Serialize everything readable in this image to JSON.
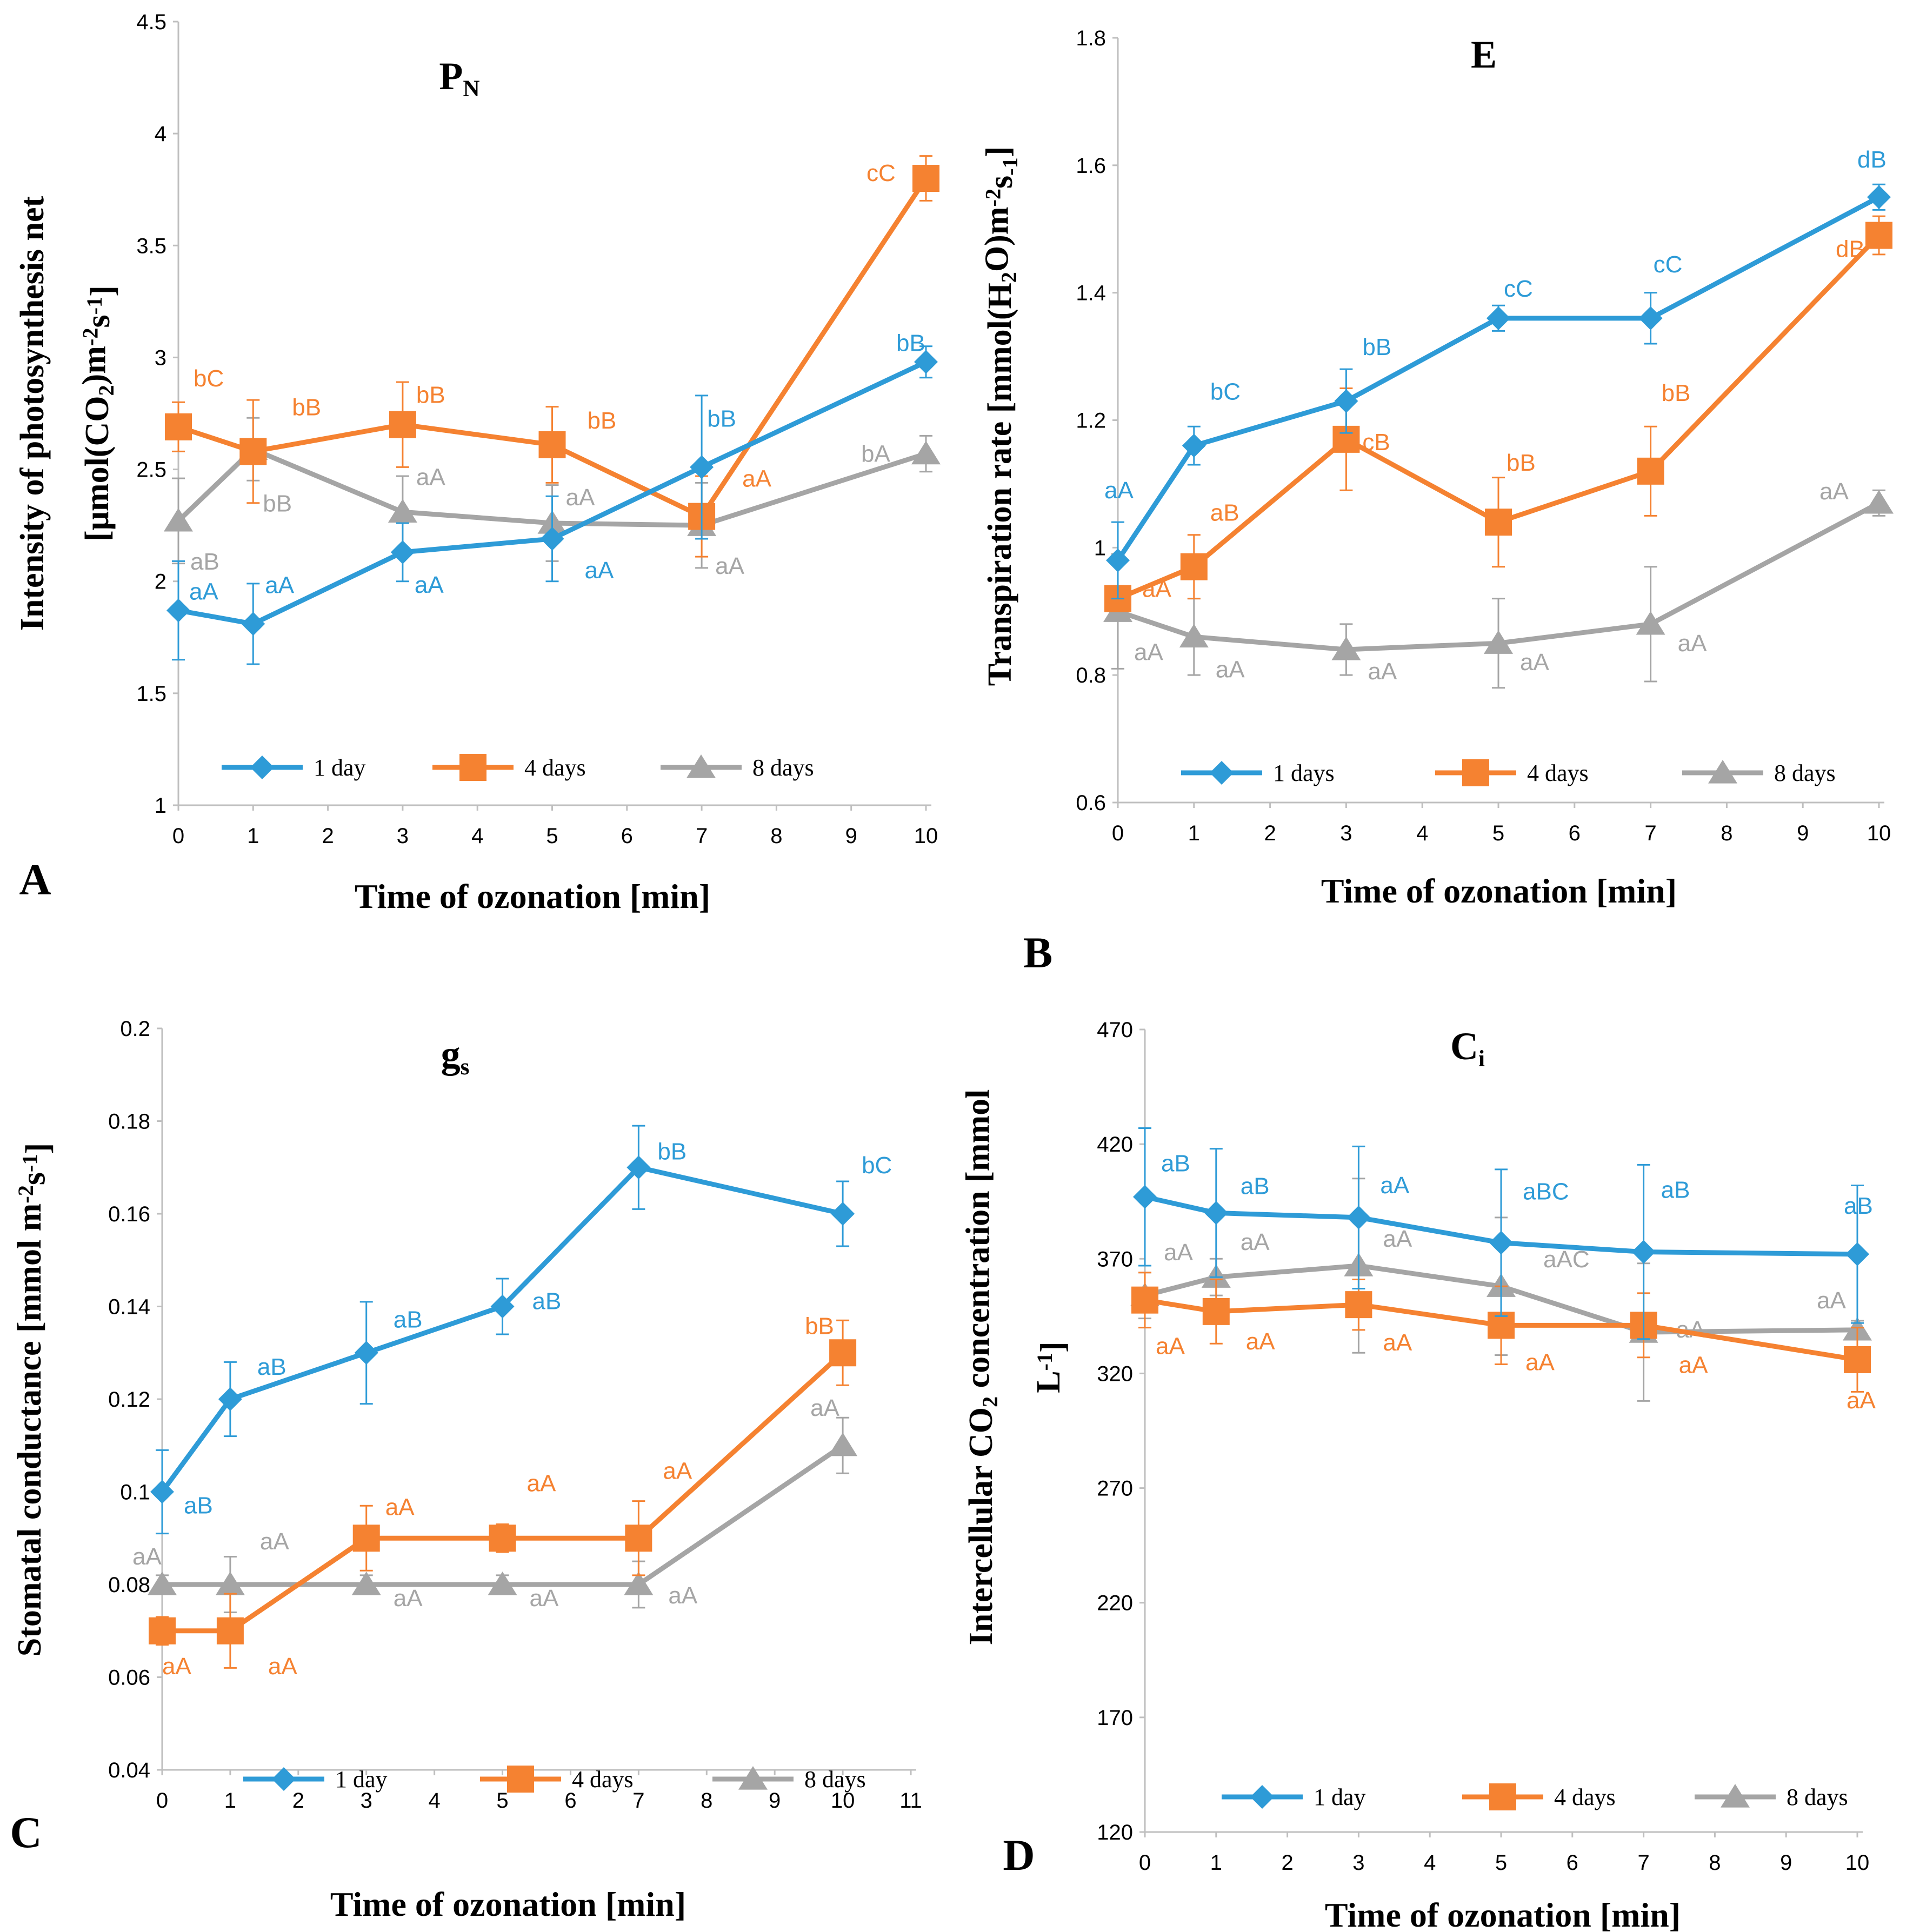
{
  "colors": {
    "blue": "#2E9BD7",
    "orange": "#F58231",
    "gray": "#A5A5A5",
    "axis": "#BFBFBF"
  },
  "legend_markers": [
    "diamond",
    "square",
    "triangle"
  ],
  "chart_data": [
    {
      "type": "line",
      "panel": "A",
      "title": {
        "main": "P",
        "sub": "N"
      },
      "xlabel": "Time of ozonation [min]",
      "ylabel_lines": [
        {
          "parts": [
            {
              "t": "Intensity of photosynthesis net"
            }
          ]
        },
        {
          "parts": [
            {
              "t": "[μmol(CO"
            },
            {
              "t": "2",
              "s": "sub"
            },
            {
              "t": ")m"
            },
            {
              "t": "-2",
              "s": "sup"
            },
            {
              "t": "s"
            },
            {
              "t": "-1",
              "s": "sup"
            },
            {
              "t": "]"
            }
          ]
        }
      ],
      "xlim": [
        0,
        10
      ],
      "xticks": [
        0,
        1,
        2,
        3,
        4,
        5,
        6,
        7,
        8,
        9,
        10
      ],
      "ylim": [
        1,
        4.5
      ],
      "yticks": [
        1,
        1.5,
        2,
        2.5,
        3,
        3.5,
        4,
        4.5
      ],
      "ytick_labels": [
        "1",
        "1.5",
        "2",
        "2.5",
        "3",
        "3.5",
        "4",
        "4.5"
      ],
      "x": [
        0,
        1,
        3,
        5,
        7,
        10
      ],
      "series": [
        {
          "name": "1 day",
          "values": [
            1.87,
            1.81,
            2.13,
            2.19,
            2.51,
            2.98
          ],
          "err": [
            0.22,
            0.18,
            0.13,
            0.19,
            0.32,
            0.07
          ],
          "labels": [
            "aA",
            "aA",
            "aA",
            "aA",
            "bB",
            "bB"
          ]
        },
        {
          "name": "4 days",
          "values": [
            2.69,
            2.58,
            2.7,
            2.61,
            2.29,
            3.8
          ],
          "err": [
            0.11,
            0.23,
            0.19,
            0.17,
            0.18,
            0.1
          ],
          "labels": [
            "bC",
            "bB",
            "bB",
            "bB",
            "aA",
            "cC"
          ]
        },
        {
          "name": "8 days",
          "values": [
            2.27,
            2.59,
            2.31,
            2.26,
            2.25,
            2.57
          ],
          "err": [
            0.19,
            0.14,
            0.16,
            0.17,
            0.19,
            0.08
          ],
          "labels": [
            "aB",
            "bB",
            "aA",
            "aA",
            "aA",
            "bA"
          ]
        }
      ]
    },
    {
      "type": "line",
      "panel": "B",
      "title": {
        "main": "E",
        "sub": ""
      },
      "xlabel": "Time of ozonation [min]",
      "ylabel_lines": [
        {
          "parts": [
            {
              "t": "Transpiration rate [mmol(H"
            },
            {
              "t": "2",
              "s": "sub"
            },
            {
              "t": "O)m"
            },
            {
              "t": "-2",
              "s": "sup"
            },
            {
              "t": "s"
            },
            {
              "t": "-1",
              "s": "sub"
            },
            {
              "t": "]"
            }
          ]
        }
      ],
      "xlim": [
        0,
        10
      ],
      "xticks": [
        0,
        1,
        2,
        3,
        4,
        5,
        6,
        7,
        8,
        9,
        10
      ],
      "ylim": [
        0.6,
        1.8
      ],
      "yticks": [
        0.6,
        0.8,
        1.0,
        1.2,
        1.4,
        1.6,
        1.8
      ],
      "ytick_labels": [
        "0.6",
        "0.8",
        "1",
        "1.2",
        "1.4",
        "1.6",
        "1.8"
      ],
      "x": [
        0,
        1,
        3,
        5,
        7,
        10
      ],
      "series": [
        {
          "name": "1 days",
          "values": [
            0.98,
            1.16,
            1.23,
            1.36,
            1.36,
            1.55
          ],
          "err": [
            0.06,
            0.03,
            0.05,
            0.02,
            0.04,
            0.02
          ],
          "labels": [
            "aA",
            "bC",
            "bB",
            "cC",
            "cC",
            "dB"
          ]
        },
        {
          "name": "4 days",
          "values": [
            0.92,
            0.97,
            1.17,
            1.04,
            1.12,
            1.49
          ],
          "err": [
            0.02,
            0.05,
            0.08,
            0.07,
            0.07,
            0.03
          ],
          "labels": [
            "aA",
            "aB",
            "cB",
            "bB",
            "bB",
            "dB"
          ]
        },
        {
          "name": "8 days",
          "values": [
            0.9,
            0.86,
            0.84,
            0.85,
            0.88,
            1.07
          ],
          "err": [
            0.09,
            0.06,
            0.04,
            0.07,
            0.09,
            0.02
          ],
          "labels": [
            "aA",
            "aA",
            "aA",
            "aA",
            "aA",
            "aA"
          ]
        }
      ]
    },
    {
      "type": "line",
      "panel": "C",
      "title": {
        "main": "g",
        "sub": "s"
      },
      "xlabel": "Time of ozonation [min]",
      "ylabel_lines": [
        {
          "parts": [
            {
              "t": "Stomatal conductance [mmol m"
            },
            {
              "t": "-2",
              "s": "sup"
            },
            {
              "t": "s"
            },
            {
              "t": "-1",
              "s": "sup"
            },
            {
              "t": "]"
            }
          ]
        }
      ],
      "xlim": [
        0,
        11
      ],
      "xticks": [
        0,
        1,
        2,
        3,
        4,
        5,
        6,
        7,
        8,
        9,
        10,
        11
      ],
      "ylim": [
        0.04,
        0.2
      ],
      "yticks": [
        0.04,
        0.06,
        0.08,
        0.1,
        0.12,
        0.14,
        0.16,
        0.18,
        0.2
      ],
      "ytick_labels": [
        "0.04",
        "0.06",
        "0.08",
        "0.1",
        "0.12",
        "0.14",
        "0.16",
        "0.18",
        "0.2"
      ],
      "x": [
        0,
        1,
        3,
        5,
        7,
        10
      ],
      "series": [
        {
          "name": "1 day",
          "values": [
            0.1,
            0.12,
            0.13,
            0.14,
            0.17,
            0.16
          ],
          "err": [
            0.009,
            0.008,
            0.011,
            0.006,
            0.009,
            0.007
          ],
          "labels": [
            "aB",
            "aB",
            "aB",
            "aB",
            "bB",
            "bC"
          ]
        },
        {
          "name": "4 days",
          "values": [
            0.07,
            0.07,
            0.09,
            0.09,
            0.09,
            0.13
          ],
          "err": [
            0.003,
            0.008,
            0.007,
            0.003,
            0.008,
            0.007
          ],
          "labels": [
            "aA",
            "aA",
            "aA",
            "aA",
            "aA",
            "bB"
          ]
        },
        {
          "name": "8 days",
          "values": [
            0.08,
            0.08,
            0.08,
            0.08,
            0.08,
            0.11
          ],
          "err": [
            0.002,
            0.006,
            0.002,
            0.002,
            0.005,
            0.006
          ],
          "labels": [
            "aA",
            "aA",
            "aA",
            "aA",
            "aA",
            "aA"
          ]
        }
      ]
    },
    {
      "type": "line",
      "panel": "D",
      "title": {
        "main": "C",
        "sub": "i"
      },
      "xlabel": "Time of ozonation [min]",
      "ylabel_lines": [
        {
          "parts": [
            {
              "t": "Intercellular CO"
            },
            {
              "t": "2",
              "s": "sub"
            },
            {
              "t": " concentration [mmol"
            }
          ]
        },
        {
          "parts": [
            {
              "t": "L"
            },
            {
              "t": "-1",
              "s": "sup"
            },
            {
              "t": "]"
            }
          ]
        }
      ],
      "xlim": [
        0,
        10
      ],
      "xticks": [
        0,
        1,
        2,
        3,
        4,
        5,
        6,
        7,
        8,
        9,
        10
      ],
      "ylim": [
        120,
        470
      ],
      "yticks": [
        120,
        170,
        220,
        270,
        320,
        370,
        420,
        470
      ],
      "ytick_labels": [
        "120",
        "170",
        "220",
        "270",
        "320",
        "370",
        "420",
        "470"
      ],
      "x": [
        0,
        1,
        3,
        5,
        7,
        10
      ],
      "series": [
        {
          "name": "1 day",
          "values": [
            397,
            390,
            388,
            377,
            373,
            372
          ],
          "err": [
            30,
            28,
            31,
            32,
            38,
            30
          ],
          "labels": [
            "aB",
            "aB",
            "aA",
            "aBC",
            "aB",
            "aB"
          ]
        },
        {
          "name": "4 days",
          "values": [
            352,
            347,
            350,
            341,
            341,
            326
          ],
          "err": [
            12,
            14,
            11,
            17,
            14,
            14
          ],
          "labels": [
            "aA",
            "aA",
            "aA",
            "aA",
            "aA",
            "aA"
          ]
        },
        {
          "name": "8 days",
          "values": [
            354,
            362,
            367,
            358,
            338,
            339
          ],
          "err": [
            10,
            8,
            38,
            30,
            30,
            4
          ],
          "labels": [
            "aA",
            "aA",
            "aA",
            "aAC",
            "aA",
            "aA"
          ]
        }
      ]
    }
  ]
}
